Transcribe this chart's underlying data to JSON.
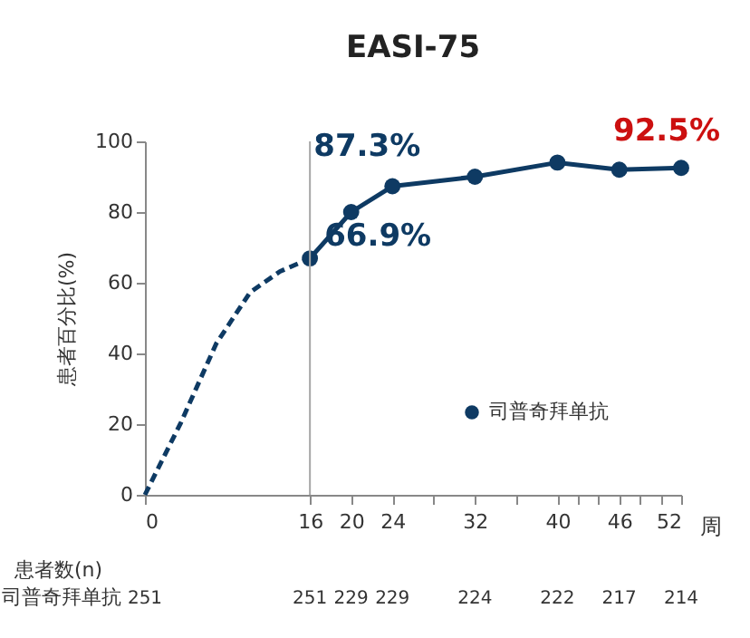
{
  "chart_data": {
    "type": "line",
    "title": "EASI-75",
    "xlabel": "周",
    "ylabel": "患者百分比(%)",
    "series": [
      {
        "color": "#0e3a63",
        "x": [
          0,
          3.5,
          6.9,
          10.2,
          13.1,
          16
        ],
        "values": [
          0,
          20.5,
          42.7,
          57.3,
          63.2,
          66.9
        ],
        "line_style": "dashed",
        "marker": "none"
      },
      {
        "name": "司普奇拜单抗",
        "color": "#0e3a63",
        "x": [
          16,
          20,
          24,
          32,
          40,
          46,
          52
        ],
        "values": [
          66.9,
          80,
          87.3,
          90,
          94,
          92,
          92.5
        ],
        "line_style": "solid",
        "marker": "circle"
      }
    ],
    "xlim": [
      0,
      52
    ],
    "xticks": [
      0,
      16,
      20,
      24,
      {
        "value": 28,
        "label": null
      },
      32,
      {
        "value": 36,
        "label": null
      },
      40,
      {
        "value": 42,
        "label": null
      },
      {
        "value": 44,
        "label": null
      },
      46,
      {
        "value": 48,
        "label": null
      },
      {
        "value": 50,
        "label": null
      },
      52
    ],
    "ylim": [
      0,
      100
    ],
    "yticks": [
      0,
      20,
      40,
      60,
      80,
      100
    ],
    "ref_lines": [
      {
        "axis": "x",
        "value": 16,
        "color": "#a6a6a6"
      }
    ],
    "annotations": [
      {
        "text": "66.9%",
        "x": 16,
        "y": 66.9
      },
      {
        "text": "87.3%",
        "x": 24,
        "y": 87.3
      },
      {
        "text": "92.5%",
        "x": 52,
        "y": 92.5
      },
      "患者数(n)",
      "司普奇拜单抗",
      "251",
      "251",
      "229",
      "229",
      "224",
      "222",
      "217",
      "214"
    ],
    "grid": false,
    "legend": "bottom right"
  }
}
